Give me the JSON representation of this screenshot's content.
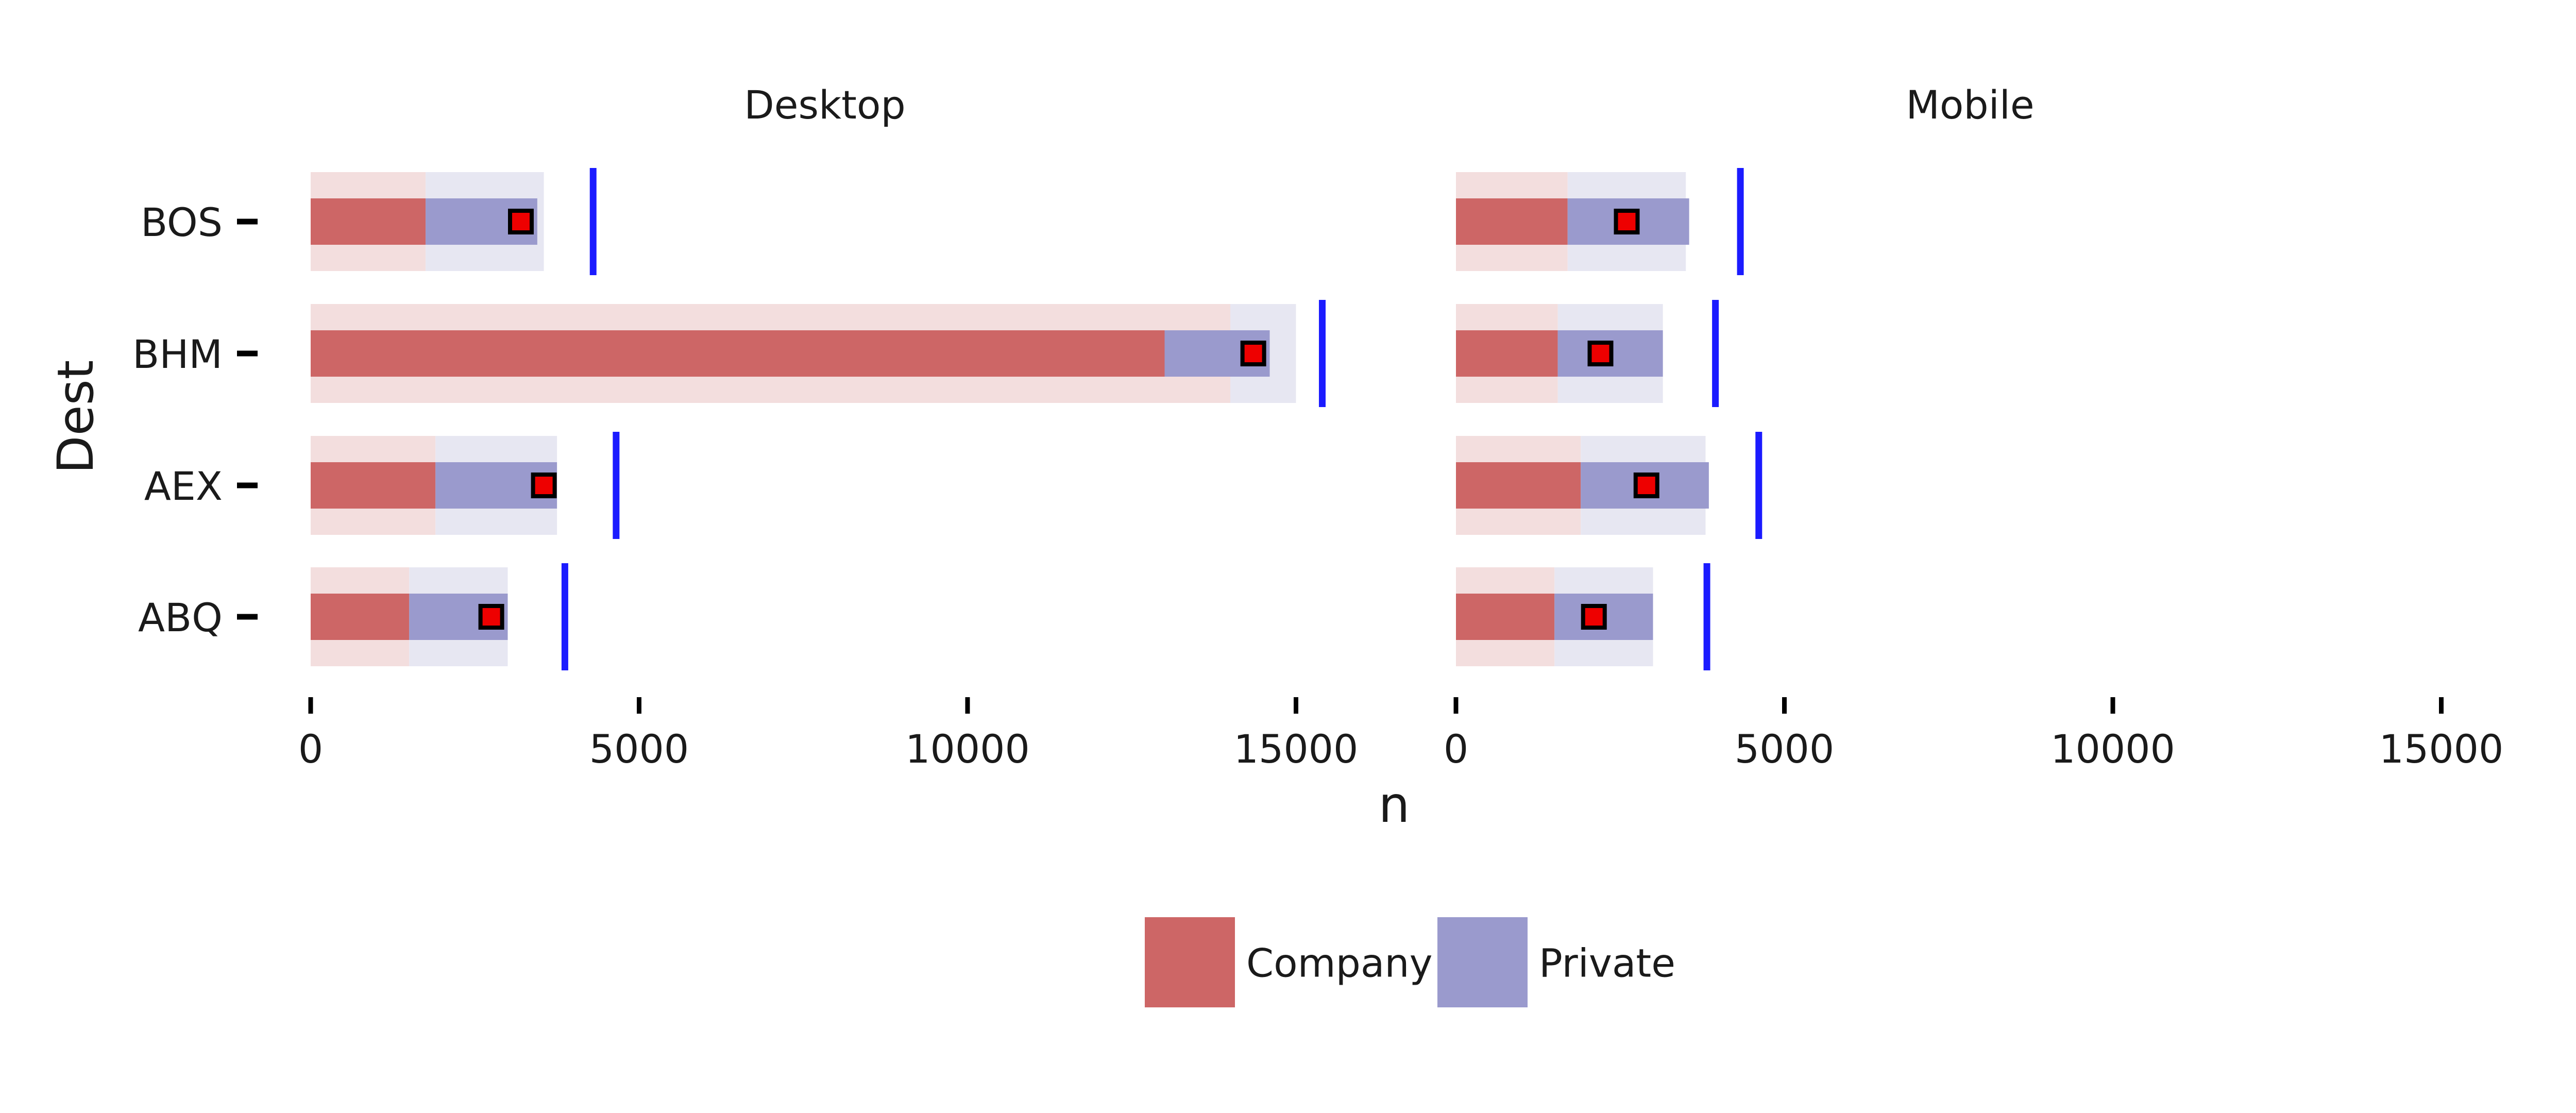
{
  "chart_data": {
    "type": "bar",
    "subtype": "faceted bullet chart (horizontal)",
    "xlabel": "n",
    "ylabel": "Dest",
    "xlim": [
      0,
      16000
    ],
    "xticks": [
      0,
      5000,
      10000,
      15000
    ],
    "xtick_labels": [
      "0",
      "5000",
      "10000",
      "15000"
    ],
    "categories": [
      "ABQ",
      "AEX",
      "BHM",
      "BOS"
    ],
    "grid": false,
    "legend_position": "bottom",
    "legend": [
      {
        "label": "Company",
        "color": "#cd6666"
      },
      {
        "label": "Private",
        "color": "#9a9acd"
      }
    ],
    "colors": {
      "company": "#cd6666",
      "private": "#9a9acd",
      "company_bg": "#f3dede",
      "private_bg": "#e7e7f2",
      "target_line": "#1b1bff",
      "point_fill": "#ee0000",
      "point_stroke": "#000000"
    },
    "panels": [
      {
        "title": "Desktop",
        "company": [
          1500,
          1900,
          13000,
          1750
        ],
        "private": [
          1500,
          1850,
          1600,
          1700
        ],
        "company_bg": [
          1500,
          1900,
          14000,
          1750
        ],
        "private_bg": [
          1500,
          1850,
          1000,
          1800
        ],
        "point": [
          2750,
          3550,
          14350,
          3200
        ],
        "target": [
          3870,
          4650,
          15400,
          4300
        ]
      },
      {
        "title": "Mobile",
        "company": [
          1500,
          1900,
          1550,
          1700
        ],
        "private": [
          1500,
          1950,
          1600,
          1850
        ],
        "company_bg": [
          1500,
          1900,
          1550,
          1700
        ],
        "private_bg": [
          1500,
          1900,
          1600,
          1800
        ],
        "point": [
          2100,
          2900,
          2200,
          2600
        ],
        "target": [
          3820,
          4610,
          3950,
          4330
        ]
      }
    ]
  }
}
